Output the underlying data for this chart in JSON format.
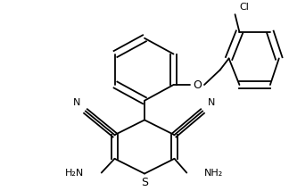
{
  "bg_color": "#ffffff",
  "line_color": "#000000",
  "lw": 1.3,
  "figsize": [
    3.24,
    2.14
  ],
  "dpi": 100,
  "xlim": [
    0,
    324
  ],
  "ylim": [
    0,
    214
  ]
}
